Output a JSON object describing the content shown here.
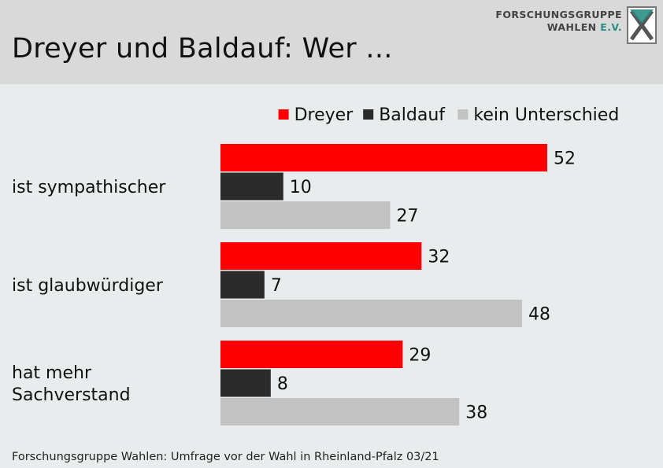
{
  "header": {
    "title": "Dreyer und Baldauf: Wer ...",
    "logo": {
      "line1": "FORSCHUNGSGRUPPE",
      "line2_main": "WAHLEN",
      "line2_accent": "E.V."
    }
  },
  "footer": {
    "source": "Forschungsgruppe Wahlen: Umfrage vor der Wahl in Rheinland-Pfalz 03/21"
  },
  "colors": {
    "header_bg": "#d9d9d9",
    "background": "#e9ecec",
    "dreyer": "#ff0000",
    "baldauf": "#2b2b2b",
    "kein_unterschied": "#c2c2c2",
    "logo_accent": "#2a8f86"
  },
  "chart_data": {
    "type": "bar",
    "orientation": "horizontal",
    "categories": [
      [
        "ist sympathischer"
      ],
      [
        "ist glaubwürdiger"
      ],
      [
        "hat mehr",
        "Sachverstand"
      ]
    ],
    "series": [
      {
        "name": "Dreyer",
        "color": "#ff0000",
        "values": [
          52,
          32,
          29
        ]
      },
      {
        "name": "Baldauf",
        "color": "#2b2b2b",
        "values": [
          10,
          7,
          8
        ]
      },
      {
        "name": "kein Unterschied",
        "color": "#c2c2c2",
        "values": [
          27,
          48,
          38
        ]
      }
    ],
    "xlim": [
      0,
      100
    ],
    "grid": false,
    "legend": "top-right",
    "data_labels": true
  }
}
